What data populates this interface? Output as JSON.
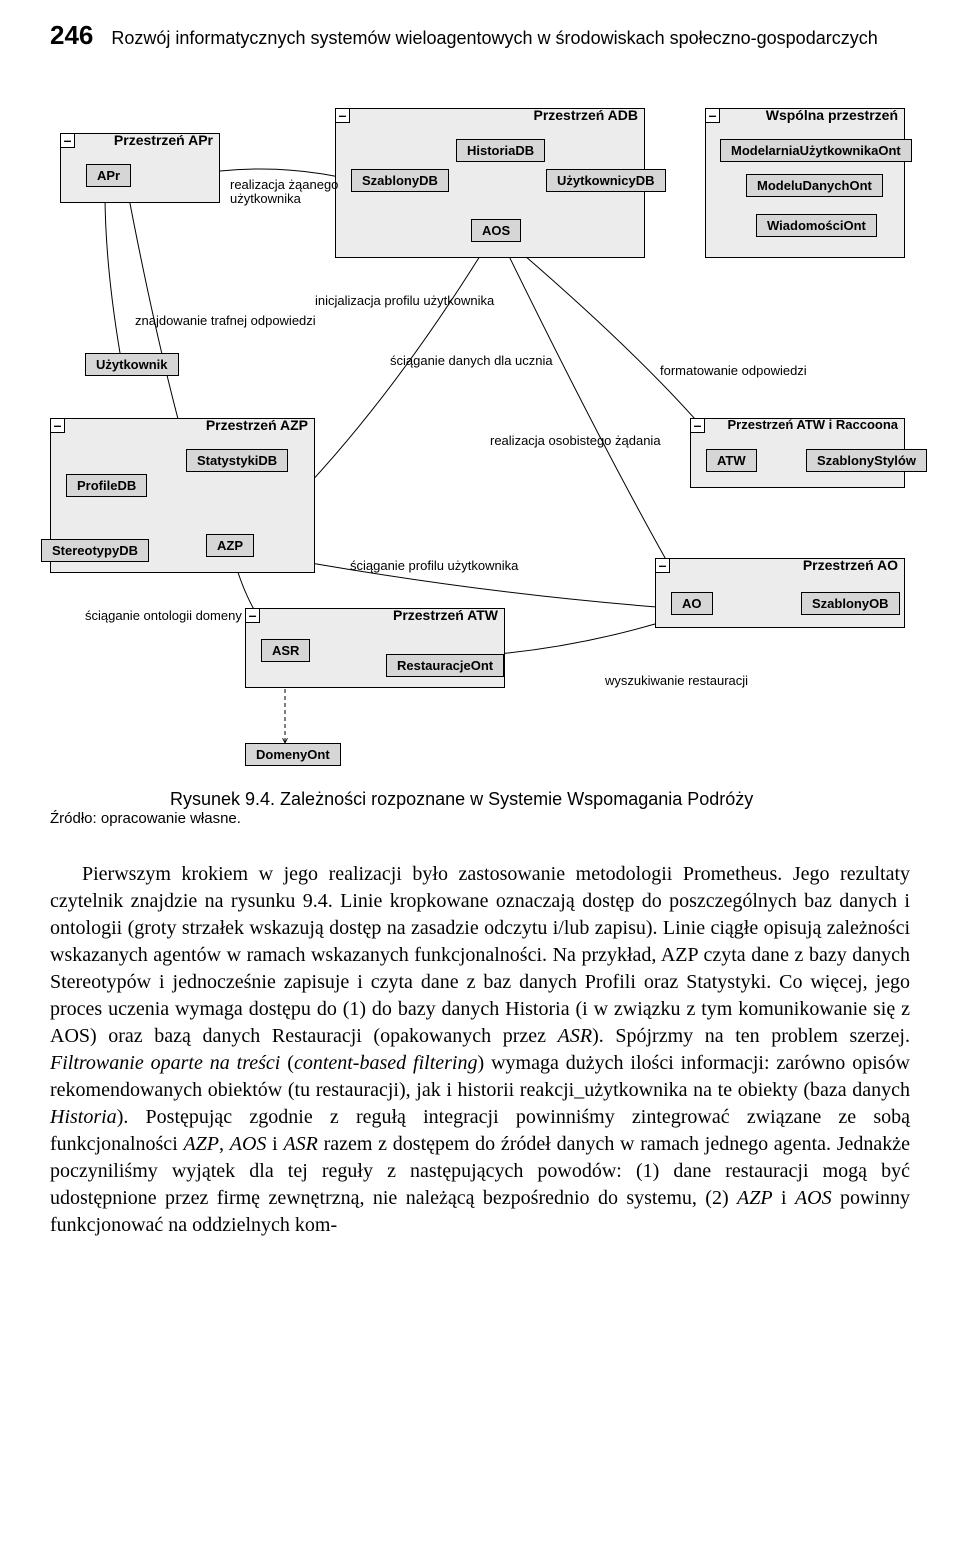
{
  "header": {
    "page_number": "246",
    "running_title": "Rozwój informatycznych systemów wieloagentowych w środowiskach społeczno-gospodarczych"
  },
  "diagram": {
    "regions": {
      "apr": {
        "title": "Przestrzeń APr"
      },
      "adb": {
        "title": "Przestrzeń ADB"
      },
      "wsp": {
        "title": "Wspólna przestrzeń"
      },
      "azp": {
        "title": "Przestrzeń AZP"
      },
      "atwr": {
        "title": "Przestrzeń ATW i Raccoona"
      },
      "atw": {
        "title": "Przestrzeń ATW"
      },
      "ao": {
        "title": "Przestrzeń AO"
      }
    },
    "nodes": {
      "apr": "APr",
      "szablonydb": "SzablonyDB",
      "historiadb": "HistoriaDB",
      "uzytkownicydb": "UżytkownicyDB",
      "aos": "AOS",
      "modelarnia": "ModelarniaUżytkownikaOnt",
      "modeludanych": "ModeluDanychOnt",
      "wiadomosci": "WiadomościOnt",
      "uzytkownik": "Użytkownik",
      "profiledb": "ProfileDB",
      "statystykidb": "StatystykiDB",
      "stereotypydb": "StereotypyDB",
      "azp": "AZP",
      "atw": "ATW",
      "szablonystylow": "SzablonyStylów",
      "asr": "ASR",
      "restauracjeont": "RestauracjeOnt",
      "ao": "AO",
      "szablonyob": "SzablonyOB",
      "domenyont": "DomenyOnt"
    },
    "labels": {
      "realizacja_zganego": "realizacja żąanego\nużytkownika",
      "znajdowanie": "znajdowanie trafnej odpowiedzi",
      "inicjalizacja": "inicjalizacja profilu użytkownika",
      "sciaganie_ucznia": "ściąganie danych dla ucznia",
      "formatowanie": "formatowanie odpowiedzi",
      "realizacja_osobistego": "realizacja osobistego żądania",
      "sciaganie_profilu": "ściąganie profilu użytkownika",
      "wyszukiwanie": "wyszukiwanie restauracji",
      "sciaganie_ontologii": "ściąganie ontologii domeny"
    }
  },
  "caption": {
    "text": "Rysunek 9.4. Zależności rozpoznane w Systemie Wspomagania Podróży",
    "source": "Źródło: opracowanie własne."
  },
  "body": {
    "p1_a": "Pierwszym krokiem w jego realizacji było zastosowanie metodologii Prometheus. Jego rezultaty czytelnik znajdzie na rysunku 9.4. Linie kropkowane oznaczają dostęp do poszczególnych baz danych i ontologii (groty strzałek wskazują dostęp na zasadzie odczytu i/lub zapisu). Linie ciągłe opisują zależności wskazanych agentów w ramach wskazanych funkcjonalności. Na przykład, AZP czyta dane z bazy danych Stereotypów i jednocześnie zapisuje i czyta dane z baz danych Profili oraz Statystyki. Co więcej, jego proces uczenia wymaga dostępu do (1) do bazy danych Historia (i w związku z tym komunikowanie się z AOS) oraz bazą danych Restauracji (opakowanych przez ",
    "p1_b": "ASR",
    "p1_c": "). Spójrzmy na ten problem szerzej. ",
    "p1_d": "Filtrowanie oparte na treści",
    "p1_e": " (",
    "p1_f": "content-based filtering",
    "p1_g": ") wymaga dużych ilości informacji: zarówno opisów rekomendowanych obiektów (tu restauracji), jak i historii reakcji_użytkownika na te obiekty (baza danych ",
    "p1_h": "Historia",
    "p1_i": "). Postępując zgodnie z regułą integracji powinniśmy zintegrować związane ze sobą funkcjonalności ",
    "p1_j": "AZP",
    "p1_k": ", ",
    "p1_l": "AOS",
    "p1_m": " i ",
    "p1_n": "ASR",
    "p1_o": " razem z dostępem do źródeł danych w ramach jednego agenta. Jednakże poczyniliśmy wyjątek dla tej reguły z następujących powodów: (1) dane restauracji mogą być udostępnione przez firmę zewnętrzną, nie należącą bezpośrednio do systemu, (2) ",
    "p1_p": "AZP",
    "p1_q": " i ",
    "p1_r": "AOS",
    "p1_s": " powinny funkcjonować na oddzielnych kom-"
  }
}
